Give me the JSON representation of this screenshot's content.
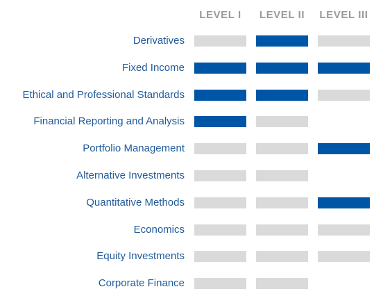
{
  "headers": [
    "LEVEL I",
    "LEVEL II",
    "LEVEL III"
  ],
  "colors": {
    "label_text": "#1f5a9a",
    "header_text": "#9a9a9a",
    "bar_active": "#0056a6",
    "bar_inactive": "#dadada"
  },
  "rows": [
    {
      "label": "Derivatives",
      "levels": [
        "inactive",
        "active",
        "inactive"
      ]
    },
    {
      "label": "Fixed Income",
      "levels": [
        "active",
        "active",
        "active"
      ]
    },
    {
      "label": "Ethical and Professional Standards",
      "levels": [
        "active",
        "active",
        "inactive"
      ]
    },
    {
      "label": "Financial Reporting and Analysis",
      "levels": [
        "active",
        "inactive",
        "none"
      ]
    },
    {
      "label": "Portfolio Management",
      "levels": [
        "inactive",
        "inactive",
        "active"
      ]
    },
    {
      "label": "Alternative Investments",
      "levels": [
        "inactive",
        "inactive",
        "none"
      ]
    },
    {
      "label": "Quantitative Methods",
      "levels": [
        "inactive",
        "inactive",
        "active"
      ]
    },
    {
      "label": "Economics",
      "levels": [
        "inactive",
        "inactive",
        "inactive"
      ]
    },
    {
      "label": "Equity Investments",
      "levels": [
        "inactive",
        "inactive",
        "inactive"
      ]
    },
    {
      "label": "Corporate Finance",
      "levels": [
        "inactive",
        "inactive",
        "none"
      ]
    }
  ]
}
